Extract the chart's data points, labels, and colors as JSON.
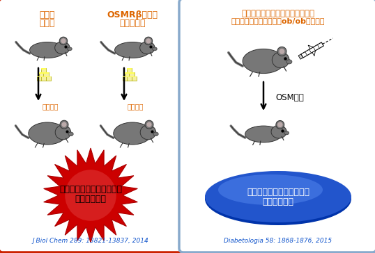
{
  "left_panel": {
    "border_color": "#cc2200",
    "title1_line1": "野生型",
    "title1_line2": "マウス",
    "title2_line1": "OSMRβ遺伝子",
    "title2_line2": "欠損マウス",
    "arrow_label1": "高脂肪食",
    "arrow_label2": "高脂肪食",
    "burst_color_outer": "#cc0000",
    "burst_color_inner": "#dd3333",
    "burst_text_line1": "肥満、インスリン抵抗性、",
    "burst_text_line2": "脂肪肝の増悪",
    "burst_text_color": "#000000",
    "citation": "J Biol Chem 289: 13821-13837, 2014"
  },
  "right_panel": {
    "border_color": "#88aacc",
    "title_line1": "メタボリック症候群モデルマウス",
    "title_line2": "（高脂肪食負荷マウス、ob/obマウス）",
    "arrow_label": "OSM投与",
    "ellipse_color": "#2255cc",
    "ellipse_highlight": "#4477dd",
    "ellipse_text_line1": "肥満、インスリン抵抗性、",
    "ellipse_text_line2": "脂肪肝の改善",
    "ellipse_text_color": "#ffffff",
    "citation": "Diabetologia 58: 1868-1876, 2015"
  },
  "title_color": "#dd6600",
  "label_color": "#dd6600",
  "bg_color": "#ffffff",
  "mouse_body_color": "#777777",
  "mouse_edge_color": "#333333"
}
